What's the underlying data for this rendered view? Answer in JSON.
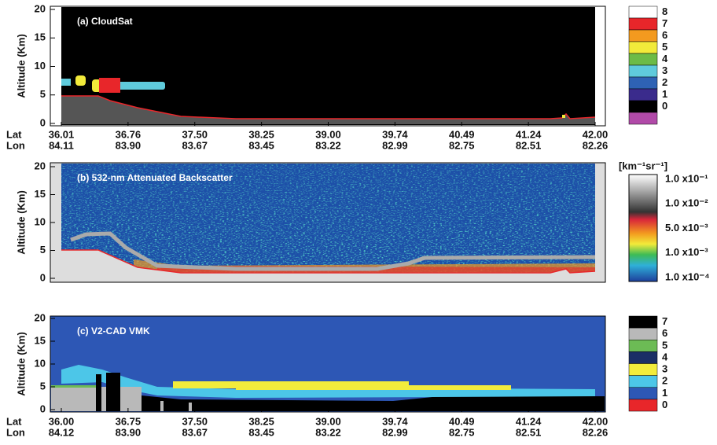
{
  "chart_data": [
    {
      "type": "curtain",
      "title": "(a) CloudSat",
      "ylabel": "Altitude (Km)",
      "ylim": [
        0,
        20
      ],
      "yticks": [
        0,
        5,
        10,
        15,
        20
      ],
      "lat_label": "Lat",
      "lon_label": "Lon",
      "categories": [
        "36.01",
        "36.76",
        "37.50",
        "38.25",
        "39.00",
        "39.74",
        "40.49",
        "41.24",
        "42.00"
      ],
      "lon": [
        "84.11",
        "83.90",
        "83.67",
        "83.45",
        "83.22",
        "82.99",
        "82.75",
        "82.51",
        "82.26"
      ],
      "colorbar": {
        "values": [
          8,
          7,
          6,
          5,
          4,
          3,
          2,
          1,
          0,
          null
        ],
        "colors": [
          "#ffffff",
          "#e8262a",
          "#f39a1f",
          "#f2ea3a",
          "#6cbb47",
          "#5fcbdc",
          "#2e62b4",
          "#3a2b8c",
          "#000000",
          "#b14aa8"
        ]
      }
    },
    {
      "type": "curtain",
      "title": "(b) 532-nm Attenuated Backscatter",
      "ylabel": "Altitude (Km)",
      "ylim": [
        0,
        20
      ],
      "yticks": [
        0,
        5,
        10,
        15,
        20
      ],
      "colorbar": {
        "title": "[km⁻¹sr⁻¹]",
        "labels": [
          "1.0 x10⁻¹",
          "1.0 x10⁻²",
          "5.0 x10⁻³",
          "1.0 x10⁻³",
          "1.0 x10⁻⁴"
        ]
      }
    },
    {
      "type": "curtain",
      "title": "(c) V2-CAD VMK",
      "ylabel": "Altitude (Km)",
      "ylim": [
        0,
        20
      ],
      "yticks": [
        0,
        5,
        10,
        15,
        20
      ],
      "lat_label": "Lat",
      "lon_label": "Lon",
      "categories": [
        "36.00",
        "36.75",
        "37.50",
        "38.25",
        "39.00",
        "39.74",
        "40.49",
        "41.24",
        "42.00"
      ],
      "lon": [
        "84.12",
        "83.90",
        "83.67",
        "83.45",
        "83.22",
        "82.99",
        "82.75",
        "82.51",
        "82.26"
      ],
      "colorbar": {
        "values": [
          7,
          6,
          5,
          4,
          3,
          2,
          1,
          0
        ],
        "colors": [
          "#000000",
          "#b9b9b9",
          "#6cbb55",
          "#1b2f66",
          "#f2ec3c",
          "#4cc6e8",
          "#2d57b5",
          "#e8262a"
        ]
      }
    }
  ]
}
